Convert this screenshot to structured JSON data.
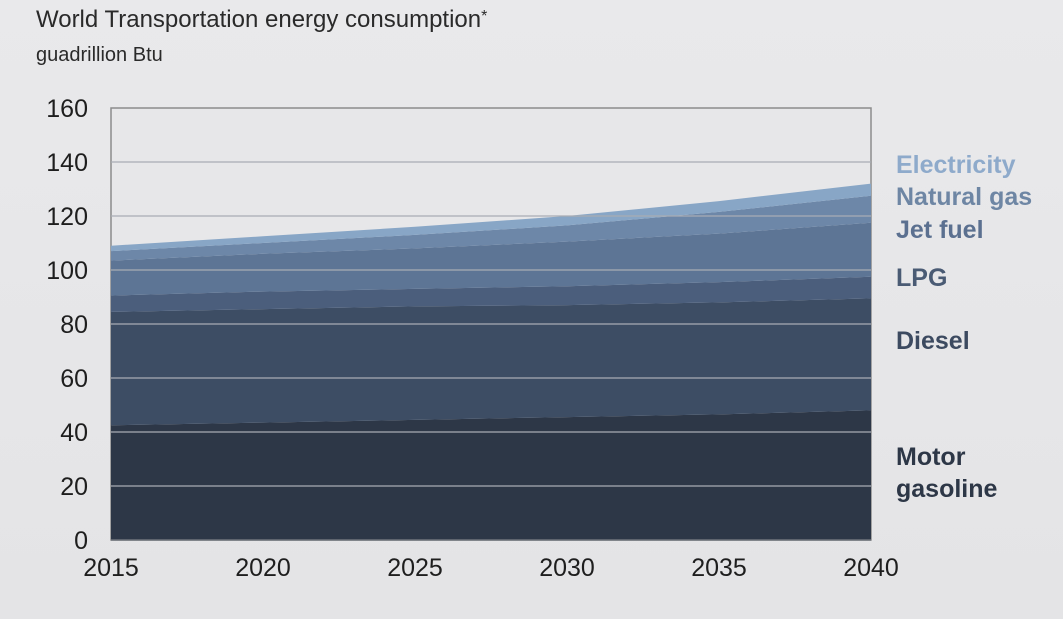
{
  "chart_data": {
    "type": "area",
    "stacked": true,
    "title": "World Transportation energy consumption",
    "title_marker": "*",
    "subtitle": "guadrillion Btu",
    "x": [
      2015,
      2020,
      2025,
      2030,
      2035,
      2040
    ],
    "xlim": [
      2015,
      2040
    ],
    "ylim": [
      0,
      160
    ],
    "yticks": [
      0,
      20,
      40,
      60,
      80,
      100,
      120,
      140,
      160
    ],
    "grid": true,
    "legend_placement": "right",
    "series": [
      {
        "name": "Motor gasoline",
        "values": [
          42.5,
          43.5,
          44.5,
          45.5,
          46.5,
          48
        ],
        "color": "#2d3747"
      },
      {
        "name": "Diesel",
        "values": [
          42,
          42,
          42,
          41.5,
          41.5,
          41.5
        ],
        "color": "#3d4d64"
      },
      {
        "name": "LPG",
        "values": [
          6,
          6.5,
          6.5,
          7,
          7.5,
          8
        ],
        "color": "#4b5e7c"
      },
      {
        "name": "Jet fuel",
        "values": [
          13,
          14,
          15,
          16.5,
          18,
          20
        ],
        "color": "#5d7595"
      },
      {
        "name": "Natural gas",
        "values": [
          3.5,
          4,
          5,
          6,
          8,
          10
        ],
        "color": "#6d87a8"
      },
      {
        "name": "Electricity",
        "values": [
          2,
          2.5,
          3,
          3.5,
          4,
          4.5
        ],
        "color": "#88a6c6"
      }
    ],
    "legend_colors": {
      "Electricity": "#8eaacb",
      "Natural gas": "#6e86a4",
      "Jet fuel": "#5b7090",
      "LPG": "#4a5b74",
      "Diesel": "#3c4a60",
      "Motor gasoline": "#2d3747"
    },
    "legend": [
      {
        "lines": [
          "Electricity"
        ],
        "series": "Electricity"
      },
      {
        "lines": [
          "Natural gas"
        ],
        "series": "Natural gas"
      },
      {
        "lines": [
          "Jet fuel"
        ],
        "series": "Jet fuel"
      },
      {
        "lines": [
          "LPG"
        ],
        "series": "LPG"
      },
      {
        "lines": [
          "Diesel"
        ],
        "series": "Diesel"
      },
      {
        "lines": [
          "Motor",
          "gasoline"
        ],
        "series": "Motor gasoline"
      }
    ]
  }
}
